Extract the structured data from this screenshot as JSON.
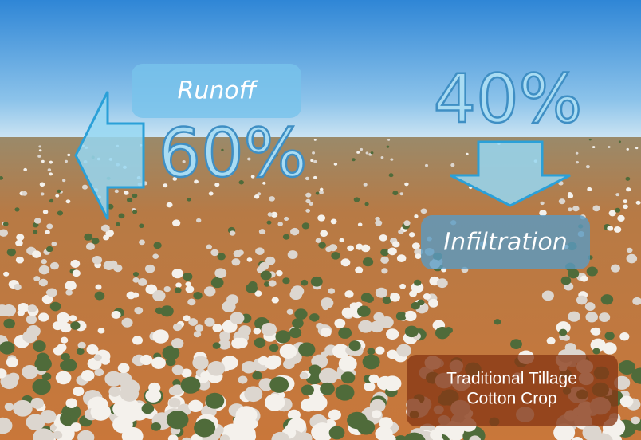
{
  "runoff": {
    "label": "Runoff",
    "percent": "60%"
  },
  "infiltration": {
    "label": "Infiltration",
    "percent": "40%"
  },
  "caption": {
    "line1": "Traditional Tillage",
    "line2": "Cotton Crop"
  }
}
